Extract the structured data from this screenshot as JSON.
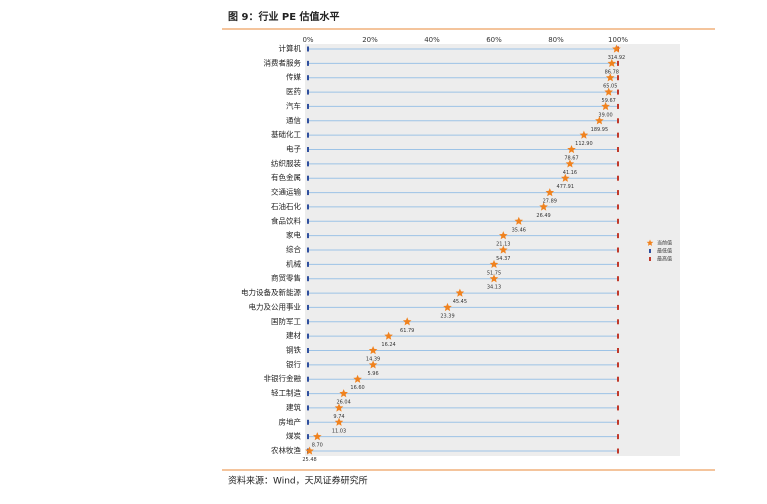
{
  "header": {
    "title": "图 9：行业 PE 估值水平"
  },
  "chart_data": {
    "type": "range-dot",
    "categories": [
      "计算机",
      "消费者服务",
      "传媒",
      "医药",
      "汽车",
      "通信",
      "基础化工",
      "电子",
      "纺织服装",
      "有色金属",
      "交通运输",
      "石油石化",
      "食品饮料",
      "家电",
      "综合",
      "机械",
      "商贸零售",
      "电力设备及新能源",
      "电力及公用事业",
      "国防军工",
      "建材",
      "钢铁",
      "银行",
      "非银行金融",
      "轻工制造",
      "建筑",
      "房地产",
      "煤炭",
      "农林牧渔"
    ],
    "series": [
      {
        "name": "当前值",
        "color": "#f0821e",
        "values": [
          99.5,
          98,
          97.5,
          97,
          96,
          94,
          89,
          85,
          84.5,
          83,
          78,
          76,
          68,
          63,
          63,
          60,
          60,
          49,
          45,
          32,
          26,
          21,
          21,
          16,
          11.5,
          10,
          10,
          3,
          0.5
        ]
      },
      {
        "name": "最低值",
        "color": "#2f4f9e",
        "values": [
          0,
          0,
          0,
          0,
          0,
          0,
          0,
          0,
          0,
          0,
          0,
          0,
          0,
          0,
          0,
          0,
          0,
          0,
          0,
          0,
          0,
          0,
          0,
          0,
          0,
          0,
          0,
          0,
          0
        ]
      },
      {
        "name": "最高值",
        "color": "#c0392b",
        "values": [
          100,
          100,
          100,
          100,
          100,
          100,
          100,
          100,
          100,
          100,
          100,
          100,
          100,
          100,
          100,
          100,
          100,
          100,
          100,
          100,
          100,
          100,
          100,
          100,
          100,
          100,
          100,
          100,
          100
        ]
      }
    ],
    "pe_labels": [
      "314.92",
      "86.78",
      "65.05",
      "59.67",
      "39.00",
      "189.95",
      "112.90",
      "78.67",
      "41.16",
      "477.91",
      "27.89",
      "26.49",
      "35.46",
      "21.13",
      "54.37",
      "51.75",
      "34.13",
      "45.45",
      "23.39",
      "61.79",
      "16.24",
      "14.39",
      "5.96",
      "16.60",
      "26.04",
      "9.74",
      "11.03",
      "8.70",
      "25.48"
    ],
    "xlim": [
      0,
      100
    ],
    "xticks": [
      {
        "value": 0,
        "label": "0%"
      },
      {
        "value": 20,
        "label": "20%"
      },
      {
        "value": 40,
        "label": "40%"
      },
      {
        "value": 60,
        "label": "60%"
      },
      {
        "value": 80,
        "label": "80%"
      },
      {
        "value": 100,
        "label": "100%"
      }
    ],
    "row_line_color": "#9dc3e6"
  },
  "footer": {
    "source": "资料来源：Wind，天风证券研究所"
  }
}
